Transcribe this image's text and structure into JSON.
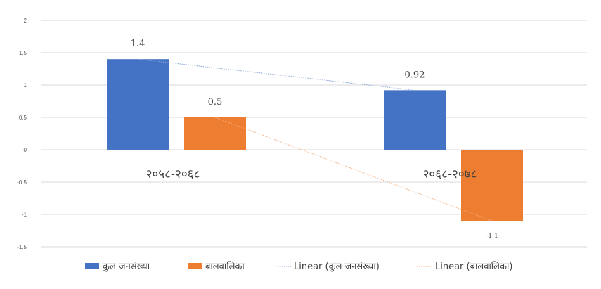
{
  "chart_data": {
    "type": "bar",
    "categories": [
      "२०५८-२०६८",
      "२०६८-२०७८"
    ],
    "series": [
      {
        "name": "कुल जनसंख्या",
        "values": [
          1.4,
          0.92
        ],
        "labels": [
          "1.4",
          "0.92"
        ],
        "color": "#4472C4"
      },
      {
        "name": "बालवालिका",
        "values": [
          0.5,
          -1.1
        ],
        "labels": [
          "0.5",
          "-1.1"
        ],
        "color": "#ED7D31"
      }
    ],
    "trendlines": [
      {
        "name": "Linear (कुल जनसंख्या)",
        "series_index": 0,
        "color": "#8EA9DB"
      },
      {
        "name": "Linear (बालवालिका)",
        "series_index": 1,
        "color": "#F4B183"
      }
    ],
    "y_ticks": [
      "2",
      "1.5",
      "1",
      "0.5",
      "0",
      "-0.5",
      "-1",
      "-1.5"
    ],
    "ylim": [
      -1.5,
      2
    ],
    "grid": true,
    "legend_position": "bottom",
    "title": "",
    "xlabel": "",
    "ylabel": ""
  }
}
